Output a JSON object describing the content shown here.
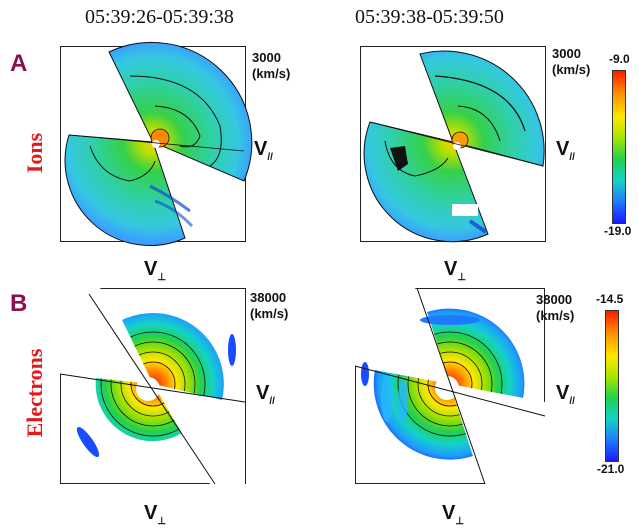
{
  "columns": [
    {
      "time_range": "05:39:26-05:39:38"
    },
    {
      "time_range": "05:39:38-05:39:50"
    }
  ],
  "rows": [
    {
      "letter": "A",
      "species": "Ions",
      "scale_value": "3000",
      "scale_unit": "(km/s)",
      "colorbar": {
        "max": "-9.0",
        "min": "-19.0"
      }
    },
    {
      "letter": "B",
      "species": "Electrons",
      "scale_value": "38000",
      "scale_unit": "(km/s)",
      "colorbar": {
        "max": "-14.5",
        "min": "-21.0"
      }
    }
  ],
  "axis_labels": {
    "v_parallel": "V",
    "v_parallel_sub": "//",
    "v_perp": "V",
    "v_perp_sub": "⊥"
  },
  "colors": {
    "letter": "#8a1050",
    "species": "#e11b1b"
  }
}
